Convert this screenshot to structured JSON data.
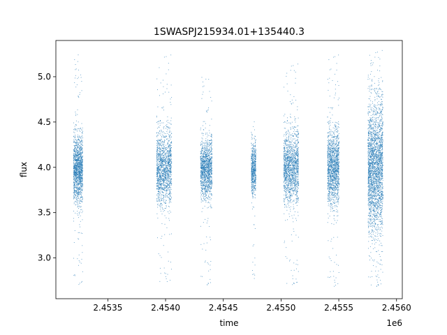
{
  "chart_data": {
    "type": "scatter",
    "title": "1SWASPJ215934.01+135440.3",
    "xlabel": "time",
    "ylabel": "flux",
    "x_offset_label": "1e6",
    "xlim": [
      2.45305,
      2.45605
    ],
    "ylim": [
      2.55,
      5.4
    ],
    "x_ticks": [
      2.4535,
      2.454,
      2.4545,
      2.455,
      2.4555,
      2.456
    ],
    "x_tick_labels": [
      "2.4535",
      "2.4540",
      "2.4545",
      "2.4550",
      "2.4555",
      "2.4560"
    ],
    "y_ticks": [
      3.0,
      3.5,
      4.0,
      4.5,
      5.0
    ],
    "y_tick_labels": [
      "3.0",
      "3.5",
      "4.0",
      "4.5",
      "5.0"
    ],
    "grid": false,
    "point_color": "#1f77b4",
    "series": [
      {
        "clusters": [
          {
            "x_start": 2.4532,
            "x_end": 2.45328,
            "y_center": 3.98,
            "y_spread": 0.18,
            "y_min": 2.68,
            "y_max": 5.25,
            "points": 1400
          },
          {
            "x_start": 2.45392,
            "x_end": 2.45405,
            "y_center": 4.0,
            "y_spread": 0.2,
            "y_min": 2.7,
            "y_max": 5.25,
            "points": 1500
          },
          {
            "x_start": 2.4543,
            "x_end": 2.4544,
            "y_center": 3.98,
            "y_spread": 0.16,
            "y_min": 2.68,
            "y_max": 5.05,
            "points": 1300
          },
          {
            "x_start": 2.45474,
            "x_end": 2.45478,
            "y_center": 4.0,
            "y_spread": 0.14,
            "y_min": 2.72,
            "y_max": 4.67,
            "points": 600
          },
          {
            "x_start": 2.45502,
            "x_end": 2.45515,
            "y_center": 4.0,
            "y_spread": 0.2,
            "y_min": 2.68,
            "y_max": 5.15,
            "points": 1500
          },
          {
            "x_start": 2.4554,
            "x_end": 2.4555,
            "y_center": 4.0,
            "y_spread": 0.2,
            "y_min": 2.66,
            "y_max": 5.25,
            "points": 1500
          },
          {
            "x_start": 2.45575,
            "x_end": 2.45588,
            "y_center": 4.0,
            "y_spread": 0.35,
            "y_min": 2.66,
            "y_max": 5.3,
            "points": 2600
          }
        ]
      }
    ]
  }
}
